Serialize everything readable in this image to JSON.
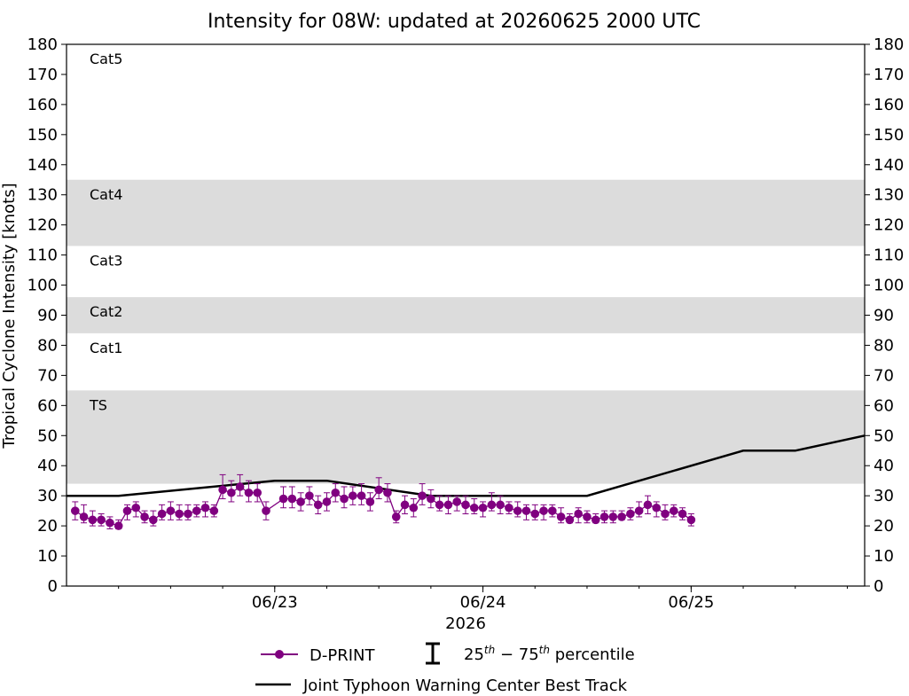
{
  "chart_data": {
    "type": "scatter",
    "title": "Intensity for 08W: updated at 20260625 2000 UTC",
    "ylabel": "Tropical Cyclone Intensity [knots]",
    "xlabel": "2026",
    "ylim": [
      0,
      180
    ],
    "yticks": [
      0,
      10,
      20,
      30,
      40,
      50,
      60,
      70,
      80,
      90,
      100,
      110,
      120,
      130,
      140,
      150,
      160,
      170,
      180
    ],
    "xlim": [
      "2026-06-22T00:00",
      "2026-06-25T20:00"
    ],
    "xticks": [
      {
        "label": "06/23",
        "t": "2026-06-23T00:00"
      },
      {
        "label": "06/24",
        "t": "2026-06-24T00:00"
      },
      {
        "label": "06/25",
        "t": "2026-06-25T00:00"
      }
    ],
    "grid": false,
    "bands": [
      {
        "label": "TS",
        "y0": 34,
        "y1": 65,
        "shaded": true
      },
      {
        "label": "Cat1",
        "y0": 65,
        "y1": 84,
        "shaded": false
      },
      {
        "label": "Cat2",
        "y0": 84,
        "y1": 96,
        "shaded": true
      },
      {
        "label": "Cat3",
        "y0": 96,
        "y1": 113,
        "shaded": false
      },
      {
        "label": "Cat4",
        "y0": 113,
        "y1": 135,
        "shaded": true
      },
      {
        "label": "Cat5",
        "y0": 135,
        "y1": 180,
        "shaded": false
      }
    ],
    "colors": {
      "dprint": "#800080",
      "best_track": "#000000",
      "band_fill": "#dcdcdc"
    },
    "series": [
      {
        "name": "Joint Typhoon Warning Center Best Track",
        "style": "line",
        "points": [
          {
            "t": "2026-06-22T00:00",
            "y": 30
          },
          {
            "t": "2026-06-22T06:00",
            "y": 30
          },
          {
            "t": "2026-06-23T00:00",
            "y": 35
          },
          {
            "t": "2026-06-23T06:00",
            "y": 35
          },
          {
            "t": "2026-06-23T18:00",
            "y": 30
          },
          {
            "t": "2026-06-24T12:00",
            "y": 30
          },
          {
            "t": "2026-06-25T06:00",
            "y": 45
          },
          {
            "t": "2026-06-25T12:00",
            "y": 45
          },
          {
            "t": "2026-06-25T20:00",
            "y": 50
          }
        ]
      },
      {
        "name": "D-PRINT",
        "style": "markers-errorbars",
        "points": [
          {
            "t": "2026-06-22T01:00",
            "y": 25,
            "lo": 22,
            "hi": 28
          },
          {
            "t": "2026-06-22T02:00",
            "y": 23,
            "lo": 21,
            "hi": 27
          },
          {
            "t": "2026-06-22T03:00",
            "y": 22,
            "lo": 20,
            "hi": 25
          },
          {
            "t": "2026-06-22T04:00",
            "y": 22,
            "lo": 20,
            "hi": 24
          },
          {
            "t": "2026-06-22T05:00",
            "y": 21,
            "lo": 19,
            "hi": 23
          },
          {
            "t": "2026-06-22T06:00",
            "y": 20,
            "lo": 19,
            "hi": 22
          },
          {
            "t": "2026-06-22T07:00",
            "y": 25,
            "lo": 22,
            "hi": 27
          },
          {
            "t": "2026-06-22T08:00",
            "y": 26,
            "lo": 23,
            "hi": 28
          },
          {
            "t": "2026-06-22T09:00",
            "y": 23,
            "lo": 21,
            "hi": 25
          },
          {
            "t": "2026-06-22T10:00",
            "y": 22,
            "lo": 20,
            "hi": 25
          },
          {
            "t": "2026-06-22T11:00",
            "y": 24,
            "lo": 22,
            "hi": 27
          },
          {
            "t": "2026-06-22T12:00",
            "y": 25,
            "lo": 22,
            "hi": 28
          },
          {
            "t": "2026-06-22T13:00",
            "y": 24,
            "lo": 22,
            "hi": 27
          },
          {
            "t": "2026-06-22T14:00",
            "y": 24,
            "lo": 22,
            "hi": 27
          },
          {
            "t": "2026-06-22T15:00",
            "y": 25,
            "lo": 23,
            "hi": 27
          },
          {
            "t": "2026-06-22T16:00",
            "y": 26,
            "lo": 23,
            "hi": 28
          },
          {
            "t": "2026-06-22T17:00",
            "y": 25,
            "lo": 23,
            "hi": 27
          },
          {
            "t": "2026-06-22T18:00",
            "y": 32,
            "lo": 29,
            "hi": 37
          },
          {
            "t": "2026-06-22T19:00",
            "y": 31,
            "lo": 28,
            "hi": 35
          },
          {
            "t": "2026-06-22T20:00",
            "y": 33,
            "lo": 30,
            "hi": 37
          },
          {
            "t": "2026-06-22T21:00",
            "y": 31,
            "lo": 28,
            "hi": 35
          },
          {
            "t": "2026-06-22T22:00",
            "y": 31,
            "lo": 28,
            "hi": 34
          },
          {
            "t": "2026-06-22T23:00",
            "y": 25,
            "lo": 22,
            "hi": 28
          },
          {
            "t": "2026-06-23T01:00",
            "y": 29,
            "lo": 26,
            "hi": 33
          },
          {
            "t": "2026-06-23T02:00",
            "y": 29,
            "lo": 26,
            "hi": 33
          },
          {
            "t": "2026-06-23T03:00",
            "y": 28,
            "lo": 25,
            "hi": 31
          },
          {
            "t": "2026-06-23T04:00",
            "y": 30,
            "lo": 27,
            "hi": 33
          },
          {
            "t": "2026-06-23T05:00",
            "y": 27,
            "lo": 24,
            "hi": 30
          },
          {
            "t": "2026-06-23T06:00",
            "y": 28,
            "lo": 25,
            "hi": 31
          },
          {
            "t": "2026-06-23T07:00",
            "y": 31,
            "lo": 28,
            "hi": 34
          },
          {
            "t": "2026-06-23T08:00",
            "y": 29,
            "lo": 26,
            "hi": 33
          },
          {
            "t": "2026-06-23T09:00",
            "y": 30,
            "lo": 27,
            "hi": 33
          },
          {
            "t": "2026-06-23T10:00",
            "y": 30,
            "lo": 27,
            "hi": 34
          },
          {
            "t": "2026-06-23T11:00",
            "y": 28,
            "lo": 25,
            "hi": 31
          },
          {
            "t": "2026-06-23T12:00",
            "y": 32,
            "lo": 29,
            "hi": 36
          },
          {
            "t": "2026-06-23T13:00",
            "y": 31,
            "lo": 28,
            "hi": 34
          },
          {
            "t": "2026-06-23T14:00",
            "y": 23,
            "lo": 21,
            "hi": 25
          },
          {
            "t": "2026-06-23T15:00",
            "y": 27,
            "lo": 24,
            "hi": 30
          },
          {
            "t": "2026-06-23T16:00",
            "y": 26,
            "lo": 23,
            "hi": 29
          },
          {
            "t": "2026-06-23T17:00",
            "y": 30,
            "lo": 27,
            "hi": 34
          },
          {
            "t": "2026-06-23T18:00",
            "y": 29,
            "lo": 26,
            "hi": 32
          },
          {
            "t": "2026-06-23T19:00",
            "y": 27,
            "lo": 25,
            "hi": 30
          },
          {
            "t": "2026-06-23T20:00",
            "y": 27,
            "lo": 24,
            "hi": 30
          },
          {
            "t": "2026-06-23T21:00",
            "y": 28,
            "lo": 25,
            "hi": 30
          },
          {
            "t": "2026-06-23T22:00",
            "y": 27,
            "lo": 24,
            "hi": 30
          },
          {
            "t": "2026-06-23T23:00",
            "y": 26,
            "lo": 24,
            "hi": 29
          },
          {
            "t": "2026-06-24T00:00",
            "y": 26,
            "lo": 23,
            "hi": 28
          },
          {
            "t": "2026-06-24T01:00",
            "y": 27,
            "lo": 25,
            "hi": 31
          },
          {
            "t": "2026-06-24T02:00",
            "y": 27,
            "lo": 24,
            "hi": 30
          },
          {
            "t": "2026-06-24T03:00",
            "y": 26,
            "lo": 24,
            "hi": 28
          },
          {
            "t": "2026-06-24T04:00",
            "y": 25,
            "lo": 23,
            "hi": 28
          },
          {
            "t": "2026-06-24T05:00",
            "y": 25,
            "lo": 22,
            "hi": 27
          },
          {
            "t": "2026-06-24T06:00",
            "y": 24,
            "lo": 22,
            "hi": 27
          },
          {
            "t": "2026-06-24T07:00",
            "y": 25,
            "lo": 22,
            "hi": 27
          },
          {
            "t": "2026-06-24T08:00",
            "y": 25,
            "lo": 23,
            "hi": 27
          },
          {
            "t": "2026-06-24T09:00",
            "y": 23,
            "lo": 21,
            "hi": 26
          },
          {
            "t": "2026-06-24T10:00",
            "y": 22,
            "lo": 21,
            "hi": 24
          },
          {
            "t": "2026-06-24T11:00",
            "y": 24,
            "lo": 21,
            "hi": 26
          },
          {
            "t": "2026-06-24T12:00",
            "y": 23,
            "lo": 21,
            "hi": 25
          },
          {
            "t": "2026-06-24T13:00",
            "y": 22,
            "lo": 21,
            "hi": 24
          },
          {
            "t": "2026-06-24T14:00",
            "y": 23,
            "lo": 21,
            "hi": 25
          },
          {
            "t": "2026-06-24T15:00",
            "y": 23,
            "lo": 21,
            "hi": 25
          },
          {
            "t": "2026-06-24T16:00",
            "y": 23,
            "lo": 22,
            "hi": 25
          },
          {
            "t": "2026-06-24T17:00",
            "y": 24,
            "lo": 22,
            "hi": 26
          },
          {
            "t": "2026-06-24T18:00",
            "y": 25,
            "lo": 23,
            "hi": 28
          },
          {
            "t": "2026-06-24T19:00",
            "y": 27,
            "lo": 24,
            "hi": 30
          },
          {
            "t": "2026-06-24T20:00",
            "y": 26,
            "lo": 23,
            "hi": 28
          },
          {
            "t": "2026-06-24T21:00",
            "y": 24,
            "lo": 22,
            "hi": 27
          },
          {
            "t": "2026-06-24T22:00",
            "y": 25,
            "lo": 23,
            "hi": 27
          },
          {
            "t": "2026-06-24T23:00",
            "y": 24,
            "lo": 22,
            "hi": 26
          },
          {
            "t": "2026-06-25T00:00",
            "y": 22,
            "lo": 20,
            "hi": 24
          }
        ]
      }
    ],
    "legend": {
      "placement": "bottom",
      "percentile_label": "25th − 75th percentile"
    }
  }
}
